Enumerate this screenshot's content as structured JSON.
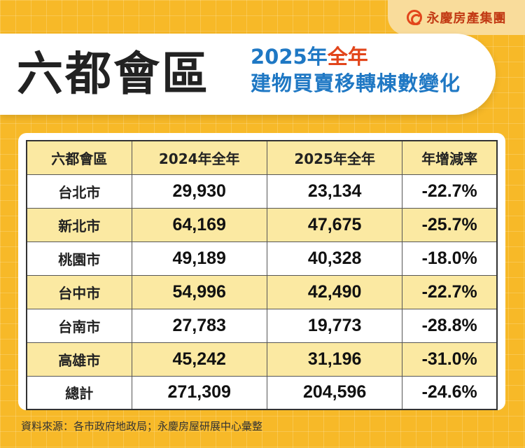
{
  "brand": {
    "name": "永慶房產集團",
    "logo_icon": "yongqing-logo-icon",
    "accent": "#e2451b"
  },
  "header": {
    "title": "六都會區",
    "subtitle_year": "2025年",
    "subtitle_full": "全年",
    "subtitle_line2": "建物買賣移轉棟數變化"
  },
  "chart_data": {
    "type": "table",
    "columns": [
      "六都會區",
      "2024年全年",
      "2025年全年",
      "年增減率"
    ],
    "rows": [
      [
        "台北市",
        "29,930",
        "23,134",
        "-22.7%"
      ],
      [
        "新北市",
        "64,169",
        "47,675",
        "-25.7%"
      ],
      [
        "桃園市",
        "49,189",
        "40,328",
        "-18.0%"
      ],
      [
        "台中市",
        "54,996",
        "42,490",
        "-22.7%"
      ],
      [
        "台南市",
        "27,783",
        "19,773",
        "-28.8%"
      ],
      [
        "高雄市",
        "45,242",
        "31,196",
        "-31.0%"
      ],
      [
        "總計",
        "271,309",
        "204,596",
        "-24.6%"
      ]
    ]
  },
  "footnote": "資料來源：各市政府地政局；永慶房屋研展中心彙整",
  "colors": {
    "background": "#f7b928",
    "row_highlight": "#fbe9a2",
    "title_blue": "#1f78c4"
  }
}
